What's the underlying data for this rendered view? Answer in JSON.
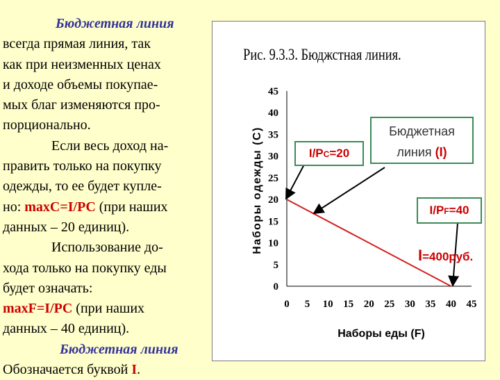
{
  "left_text": {
    "l1": "Бюджетная линия",
    "l2": "всегда прямая линия, так",
    "l3": "как при неизменных ценах",
    "l4": "и доходе объемы покупае-",
    "l5": "мых благ изменяются про-",
    "l6": "порционально.",
    "l7": "Если весь доход на-",
    "l8": "править только на покупку",
    "l9": "одежды, то ее будет купле-",
    "l10_a": "но: ",
    "l10_b": "maxC=I/PC",
    "l10_c": " (при наших",
    "l11": "данных – 20 единиц).",
    "l12": "Использование до-",
    "l13": "хода только на покупку еды",
    "l14": "будет означать:",
    "l15_a": "maxF=I/PC",
    "l15_b": " (при наших",
    "l16": "данных – 40 единиц).",
    "l17": "Бюджетная линия",
    "l18_a": "Обозначается буквой ",
    "l18_b": "I",
    "l18_c": "."
  },
  "boxes": {
    "ipc_a": "I/P",
    "ipc_sub": "C",
    "ipc_b": "=20",
    "budget_line1": "Бюджетная",
    "budget_line2a": "линия ",
    "budget_line2b": "(I)",
    "ipf_a": "I/P",
    "ipf_sub": "F",
    "ipf_b": "=40",
    "income_a": "I",
    "income_b": "=400руб."
  },
  "colors": {
    "background": "#ffffcc",
    "line": "#d42020",
    "accent_red": "#cc0000",
    "italic_blue": "#333399",
    "box_border": "#3a8a55"
  },
  "chart_data": {
    "type": "line",
    "title": "Рис. 9.3.3. Бюджстная линия.",
    "xlabel": "Наборы еды (F)",
    "ylabel": "Наборы одежды (C)",
    "x_ticks": [
      0,
      5,
      10,
      15,
      20,
      25,
      30,
      35,
      40,
      45
    ],
    "y_ticks": [
      0,
      5,
      10,
      15,
      20,
      25,
      30,
      35,
      40,
      45
    ],
    "xlim": [
      0,
      45
    ],
    "ylim": [
      0,
      45
    ],
    "grid": false,
    "series": [
      {
        "x": [
          0,
          40
        ],
        "y": [
          20,
          0
        ]
      }
    ]
  }
}
